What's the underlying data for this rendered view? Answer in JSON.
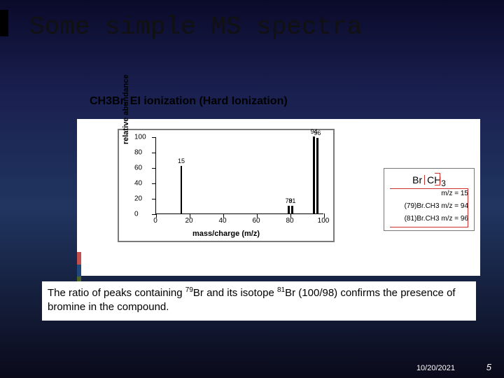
{
  "slide": {
    "title": "Some simple MS spectra",
    "subtitle": "CH3Br, EI ionization (Hard Ionization)",
    "date": "10/20/2021",
    "page": "5"
  },
  "strip_colors": [
    "#c0504d",
    "#1f497d",
    "#4f6228",
    "#5f497a"
  ],
  "chart": {
    "type": "bar",
    "ylabel": "relative abundance",
    "xlabel": "mass/charge (m/z)",
    "ylim": [
      0,
      100
    ],
    "xlim": [
      0,
      100
    ],
    "ytick_step": 20,
    "xtick_step": 20,
    "yticks": [
      0,
      20,
      40,
      60,
      80,
      100
    ],
    "xticks": [
      0,
      20,
      40,
      60,
      80,
      100
    ],
    "peaks": [
      {
        "mz": 15,
        "intensity": 62,
        "label": "15",
        "label_top": true
      },
      {
        "mz": 79,
        "intensity": 10,
        "label": "79",
        "label_top": true
      },
      {
        "mz": 81,
        "intensity": 10,
        "label": "81",
        "label_top": true
      },
      {
        "mz": 94,
        "intensity": 100,
        "label": "94",
        "label_top": true
      },
      {
        "mz": 96,
        "intensity": 98,
        "label": "96",
        "label_top": true
      }
    ],
    "peak_color": "#000000",
    "border_color": "#7a7a7a",
    "background_color": "#ffffff"
  },
  "molecule": {
    "formula_left": "Br",
    "formula_right": "CH",
    "formula_sub": "3",
    "lines": [
      "m/z = 15",
      "(79)Br.CH3 m/z = 94",
      "(81)Br.CH3 m/z = 96"
    ],
    "bracket_color": "#d03030"
  },
  "caption": {
    "pre": "The ratio of peaks containing ",
    "sup1": "79",
    "mid1": "Br and its isotope ",
    "sup2": "81",
    "mid2": "Br (100/98) confirms the presence of bromine in the compound."
  }
}
